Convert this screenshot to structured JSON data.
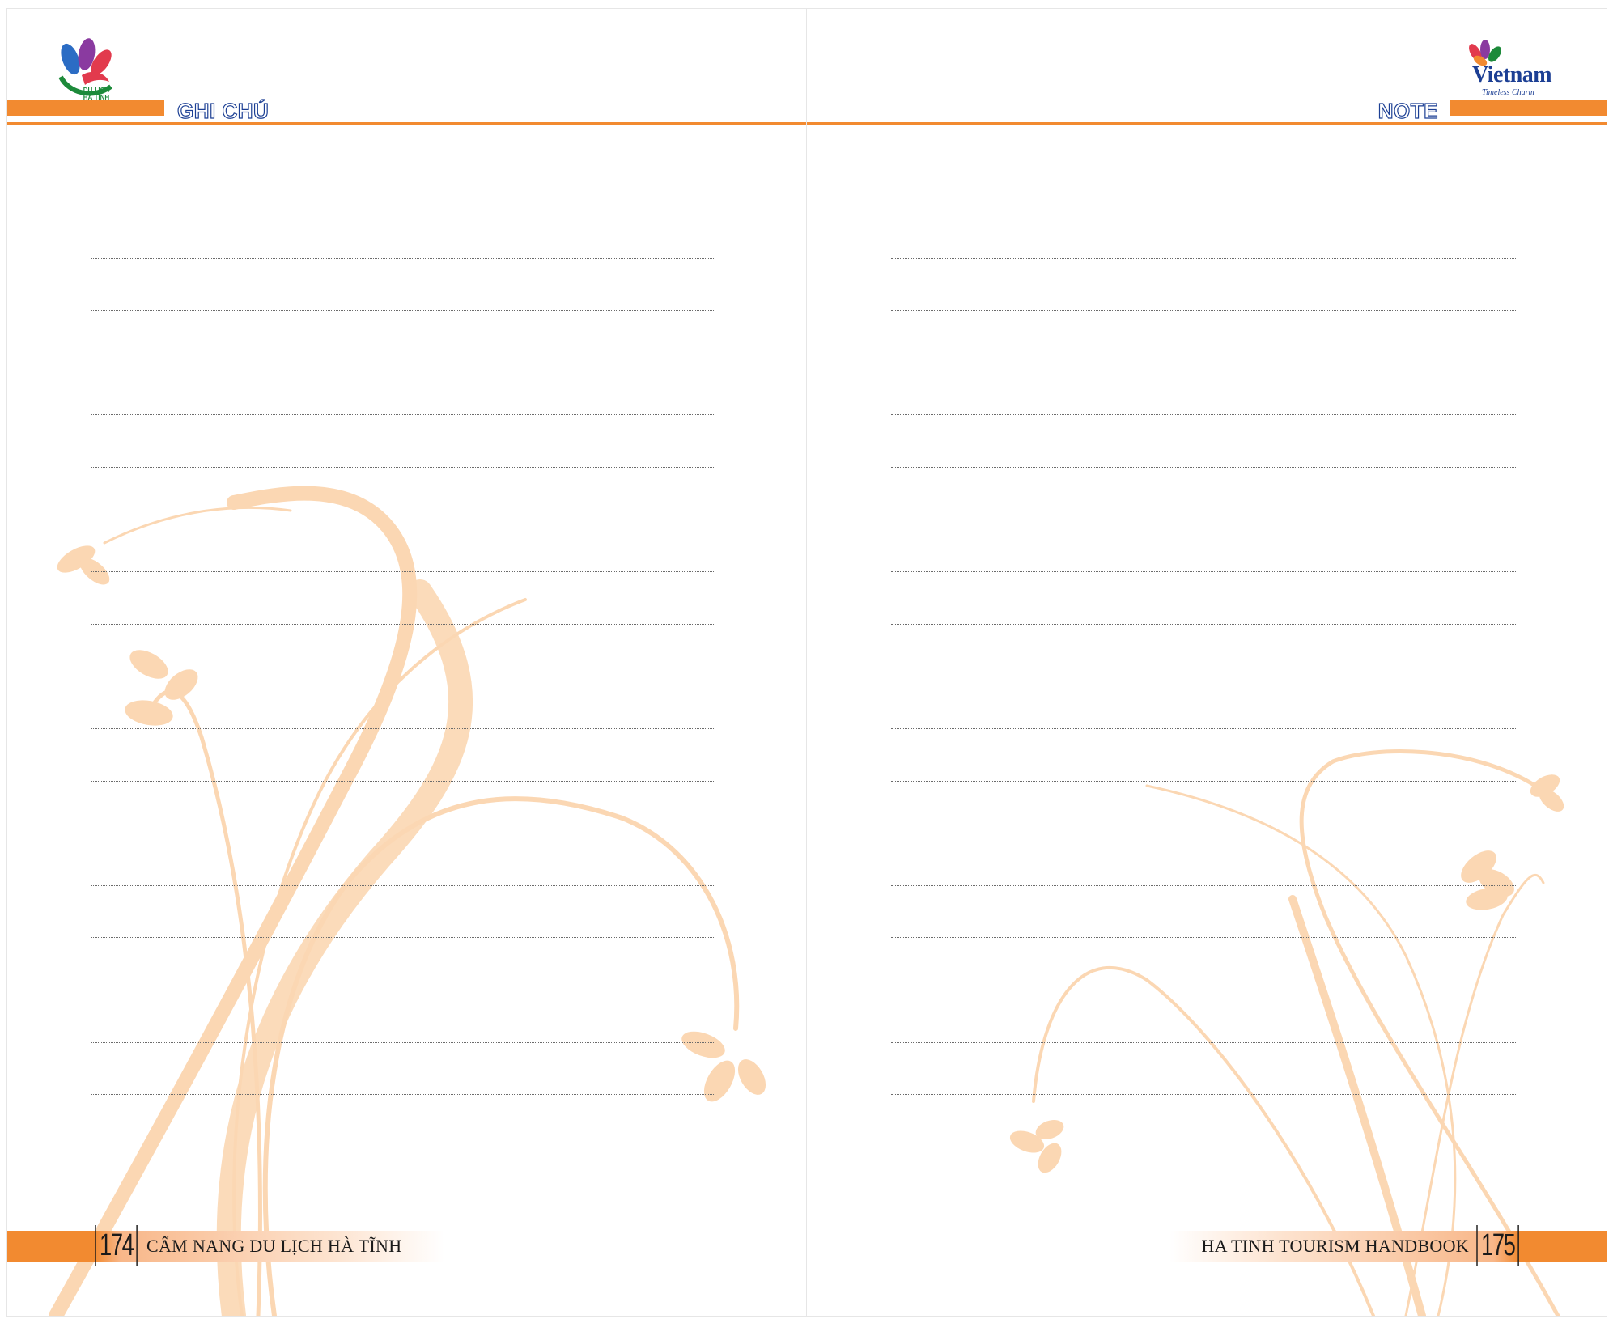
{
  "left_page": {
    "header_title": "GHI CHÚ",
    "logo_text": "DU LỊCH\nHÀ TĨNH",
    "page_number": "174",
    "footer_title": "CẨM NANG DU LỊCH HÀ TĨNH",
    "line_count": 19
  },
  "right_page": {
    "header_title": "NOTE",
    "logo_text": "Vietnam",
    "logo_tagline": "Timeless Charm",
    "page_number": "175",
    "footer_title": "HA TINH TOURISM HANDBOOK",
    "line_count": 19
  },
  "colors": {
    "accent": "#f28a30",
    "vine": "#fbd7b3",
    "heading_outline": "#1c3f94"
  },
  "icons": [
    "ha-tinh-tourism-logo",
    "vietnam-timeless-charm-logo",
    "vine-decoration"
  ]
}
